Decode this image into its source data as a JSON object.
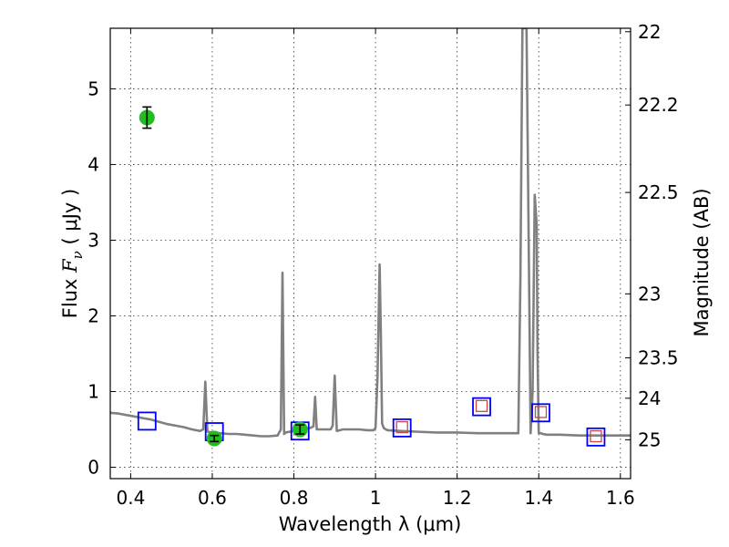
{
  "chart_data": {
    "type": "line",
    "xlabel": "Wavelength  λ (μm)",
    "ylabel_left": {
      "prefix": "Flux  ",
      "symbol": "F",
      "subscript": "ν",
      "unit": "  ( μJy )"
    },
    "ylabel_right": "Magnitude (AB)",
    "xlim": [
      0.35,
      1.625
    ],
    "ylim": [
      -0.15,
      5.8
    ],
    "grid": true,
    "x_ticks": [
      0.4,
      0.6,
      0.8,
      1.0,
      1.2,
      1.4,
      1.6
    ],
    "x_tick_labels": [
      "0.4",
      "0.6",
      "0.8",
      "1",
      "1.2",
      "1.4",
      "1.6"
    ],
    "y_ticks": [
      0,
      1,
      2,
      3,
      4,
      5
    ],
    "y_tick_labels": [
      "0",
      "1",
      "2",
      "3",
      "4",
      "5"
    ],
    "right_ticks": [
      22,
      22.2,
      22.5,
      23,
      23.5,
      24,
      25
    ],
    "right_tick_labels": [
      "22",
      "22.2",
      "22.5",
      "23",
      "23.5",
      "24",
      "25"
    ],
    "series": [
      {
        "kind": "model-spectrum",
        "color": "#808080",
        "x": [
          0.35,
          0.37,
          0.39,
          0.41,
          0.43,
          0.45,
          0.47,
          0.49,
          0.51,
          0.53,
          0.55,
          0.57,
          0.578,
          0.583,
          0.588,
          0.6,
          0.62,
          0.64,
          0.66,
          0.68,
          0.7,
          0.72,
          0.74,
          0.76,
          0.768,
          0.772,
          0.776,
          0.78,
          0.8,
          0.82,
          0.84,
          0.848,
          0.852,
          0.856,
          0.87,
          0.89,
          0.895,
          0.9,
          0.905,
          0.92,
          0.94,
          0.96,
          0.98,
          0.995,
          1.0,
          1.005,
          1.01,
          1.013,
          1.016,
          1.02,
          1.025,
          1.03,
          1.06,
          1.1,
          1.15,
          1.2,
          1.25,
          1.3,
          1.34,
          1.35,
          1.355,
          1.36,
          1.365,
          1.37,
          1.375,
          1.38,
          1.385,
          1.39,
          1.395,
          1.397,
          1.4,
          1.405,
          1.41,
          1.42,
          1.45,
          1.5,
          1.55,
          1.6,
          1.625
        ],
        "y": [
          0.72,
          0.71,
          0.69,
          0.67,
          0.65,
          0.63,
          0.6,
          0.57,
          0.55,
          0.53,
          0.5,
          0.48,
          0.5,
          1.13,
          0.47,
          0.46,
          0.45,
          0.44,
          0.44,
          0.43,
          0.42,
          0.41,
          0.41,
          0.42,
          0.5,
          2.57,
          0.44,
          0.46,
          0.48,
          0.5,
          0.52,
          0.54,
          0.93,
          0.5,
          0.5,
          0.5,
          0.55,
          1.21,
          0.48,
          0.5,
          0.5,
          0.5,
          0.49,
          0.49,
          0.52,
          1.2,
          2.68,
          1.8,
          0.58,
          0.52,
          0.5,
          0.49,
          0.48,
          0.47,
          0.46,
          0.46,
          0.45,
          0.45,
          0.45,
          0.45,
          2.5,
          5.8,
          5.8,
          5.8,
          3.2,
          0.45,
          1.0,
          3.6,
          3.2,
          1.5,
          0.45,
          0.45,
          0.44,
          0.43,
          0.43,
          0.42,
          0.42,
          0.42,
          0.42
        ]
      },
      {
        "kind": "model-photometry",
        "marker": "open-square",
        "edge_color": "#0000ff",
        "x": [
          0.44,
          0.605,
          0.815,
          1.065,
          1.26,
          1.405,
          1.54
        ],
        "y": [
          0.61,
          0.47,
          0.48,
          0.52,
          0.8,
          0.72,
          0.4
        ]
      },
      {
        "kind": "observed-photometry",
        "marker": "open-square-small",
        "edge_color": "#cc4444",
        "x": [
          1.065,
          1.26,
          1.405,
          1.54
        ],
        "y": [
          0.53,
          0.81,
          0.73,
          0.41
        ]
      },
      {
        "kind": "observed-detections",
        "marker": "filled-circle",
        "color": "#22bb22",
        "x": [
          0.44,
          0.605,
          0.815
        ],
        "y": [
          4.62,
          0.38,
          0.5
        ],
        "yerr": [
          0.14,
          0.04,
          0.06
        ]
      }
    ]
  }
}
